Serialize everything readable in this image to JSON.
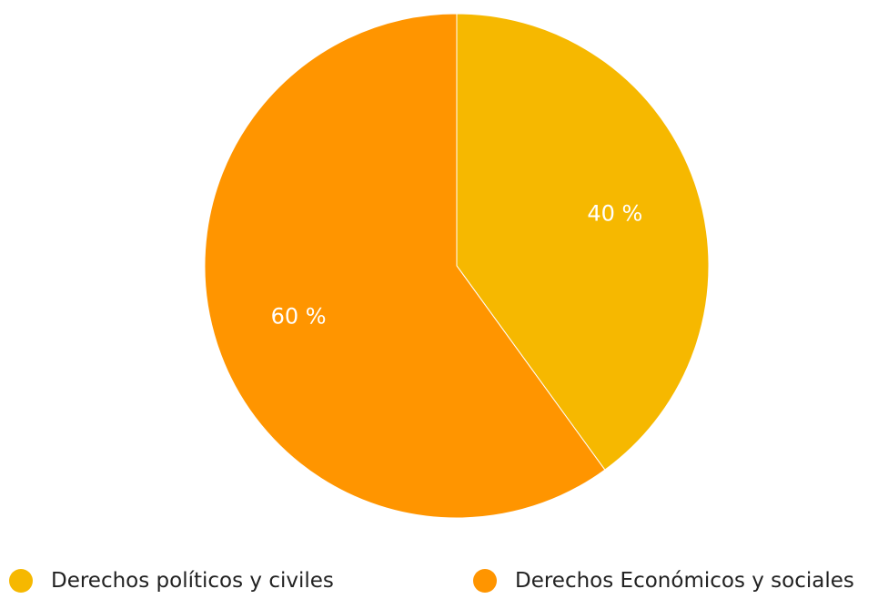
{
  "chart_data": {
    "type": "pie",
    "categories": [
      "Derechos políticos y civiles",
      "Derechos Económicos y sociales"
    ],
    "values": [
      40,
      60
    ],
    "data_labels": [
      "40 %",
      "60 %"
    ],
    "colors": [
      "#F6B800",
      "#FF9500"
    ],
    "legend_placement": "bottom"
  }
}
